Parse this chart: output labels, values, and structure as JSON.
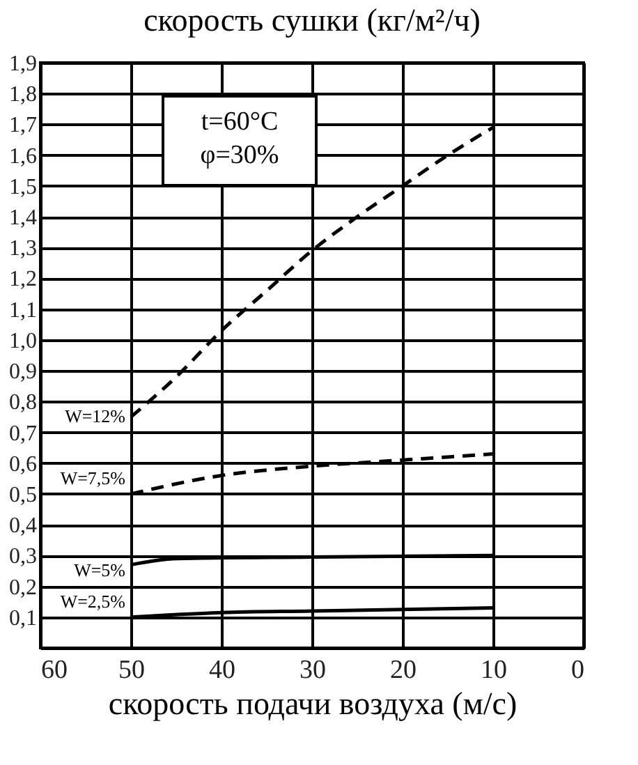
{
  "chart_data": {
    "type": "line",
    "title": "скорость сушки (кг/м²/ч)",
    "xlabel": "скорость подачи воздуха (м/с)",
    "annotations": [
      "t=60°C",
      "φ=30%"
    ],
    "xlim": [
      60,
      0
    ],
    "xticks": [
      60,
      50,
      40,
      30,
      20,
      10,
      0
    ],
    "ylim": [
      0,
      1.9
    ],
    "yticks": [
      {
        "value": 0.1,
        "label": "0,1"
      },
      {
        "value": 0.2,
        "label": "0,2"
      },
      {
        "value": 0.3,
        "label": "0,3"
      },
      {
        "value": 0.4,
        "label": "0,4"
      },
      {
        "value": 0.5,
        "label": "0,5"
      },
      {
        "value": 0.6,
        "label": "0,6"
      },
      {
        "value": 0.7,
        "label": "0,7"
      },
      {
        "value": 0.8,
        "label": "0,8"
      },
      {
        "value": 0.9,
        "label": "0,9"
      },
      {
        "value": 1.0,
        "label": "1,0"
      },
      {
        "value": 1.1,
        "label": "1,1"
      },
      {
        "value": 1.2,
        "label": "1,2"
      },
      {
        "value": 1.3,
        "label": "1,3"
      },
      {
        "value": 1.4,
        "label": "1,4"
      },
      {
        "value": 1.5,
        "label": "1,5"
      },
      {
        "value": 1.6,
        "label": "1,6"
      },
      {
        "value": 1.7,
        "label": "1,7"
      },
      {
        "value": 1.8,
        "label": "1,8"
      },
      {
        "value": 1.9,
        "label": "1,9"
      }
    ],
    "grid": true,
    "series": [
      {
        "name": "W=12%",
        "color": "#000000",
        "line_style": "dashed",
        "x": [
          50,
          45,
          40,
          35,
          30,
          25,
          20,
          15,
          10
        ],
        "values": [
          0.75,
          0.88,
          1.03,
          1.16,
          1.29,
          1.4,
          1.5,
          1.6,
          1.69
        ]
      },
      {
        "name": "W=7,5%",
        "color": "#000000",
        "line_style": "dashed",
        "x": [
          50,
          40,
          30,
          20,
          10
        ],
        "values": [
          0.5,
          0.56,
          0.59,
          0.61,
          0.63
        ]
      },
      {
        "name": "W=5%",
        "color": "#000000",
        "line_style": "solid",
        "x": [
          50,
          45,
          30,
          10
        ],
        "values": [
          0.27,
          0.29,
          0.295,
          0.3
        ]
      },
      {
        "name": "W=2,5%",
        "color": "#000000",
        "line_style": "solid",
        "x": [
          50,
          40,
          30,
          10
        ],
        "values": [
          0.1,
          0.115,
          0.12,
          0.13
        ]
      }
    ]
  }
}
